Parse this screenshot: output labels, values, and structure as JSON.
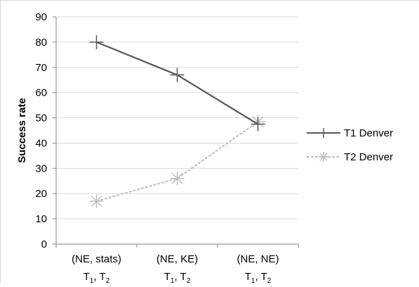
{
  "chart_data": {
    "type": "line",
    "title": "",
    "xlabel": "",
    "ylabel": "Success rate",
    "ylim": [
      0,
      90
    ],
    "y_ticks": [
      0,
      10,
      20,
      30,
      40,
      50,
      60,
      70,
      80,
      90
    ],
    "grid": "horizontal",
    "legend_position": "right",
    "categories": [
      {
        "line1": "(NE, stats)",
        "line2_terms": [
          "T",
          "1",
          ",  ",
          "T",
          "2"
        ]
      },
      {
        "line1": "(NE, KE)",
        "line2_terms": [
          "T",
          "1",
          ",  ",
          "T",
          "2"
        ]
      },
      {
        "line1": "(NE, NE)",
        "line2_terms": [
          "T",
          "1",
          ",  ",
          "T",
          "2"
        ]
      }
    ],
    "series": [
      {
        "name": "T1 Denver",
        "values": [
          80,
          67,
          47.5
        ],
        "color": "#595959",
        "dash": "solid",
        "marker": "plus"
      },
      {
        "name": "T2 Denver",
        "values": [
          17,
          26,
          48.5
        ],
        "color": "#bfbfbf",
        "dash": "dashed",
        "marker": "asterisk"
      }
    ]
  }
}
